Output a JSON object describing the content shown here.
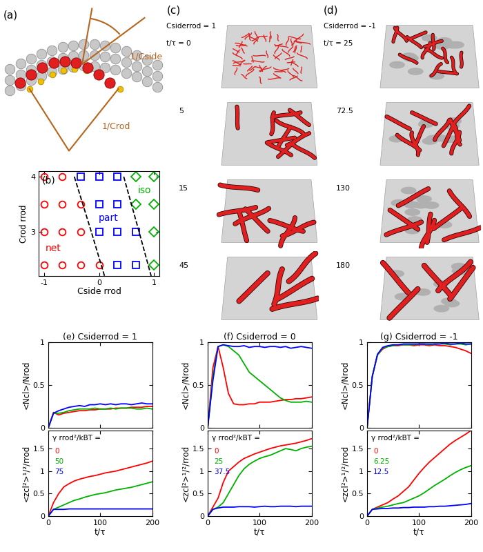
{
  "schematic": {
    "label": "(a)",
    "texts": [
      "-1/Cside",
      "1/Crod"
    ]
  },
  "snapshots": [
    {
      "label": "(c)",
      "header": "Csiderrod = 1",
      "time_prefix": "t/τ =",
      "times": [
        0,
        5,
        15,
        45
      ]
    },
    {
      "label": "(d)",
      "header": "Csiderrod = -1",
      "time_prefix": "t/τ =",
      "times": [
        25,
        72.5,
        130,
        180
      ]
    }
  ],
  "chart_data": [
    {
      "type": "scatter",
      "title": "(b)",
      "xlabel": "Cside rrod",
      "ylabel": "Crod rrod",
      "xlim": [
        -1.1,
        1.1
      ],
      "ylim": [
        2.2,
        4.1
      ],
      "xticks": [
        -1,
        0,
        1
      ],
      "yticks": [
        3,
        4
      ],
      "series": [
        {
          "color": "#ff0000",
          "marker": "circle",
          "x": [
            -1,
            -0.67,
            -1,
            -0.67,
            -0.33,
            -1,
            -0.67,
            -0.33,
            -1,
            -0.67,
            -0.33,
            0
          ],
          "y": [
            4,
            4,
            3.5,
            3.5,
            3.5,
            3,
            3,
            3,
            2.4,
            2.4,
            2.4,
            2.4
          ]
        },
        {
          "color": "#0000ff",
          "marker": "square",
          "x": [
            -0.33,
            0,
            0.33,
            0,
            0.33,
            0,
            0.33,
            0.67,
            0.33,
            0.67
          ],
          "y": [
            4,
            4,
            4,
            3.5,
            3.5,
            3,
            3,
            3,
            2.4,
            2.4
          ]
        },
        {
          "color": "#00b000",
          "marker": "diamond",
          "x": [
            0.67,
            1,
            0.67,
            1,
            1,
            1
          ],
          "y": [
            4,
            4,
            3.5,
            3.5,
            3,
            2.4
          ]
        },
        {
          "type": "line",
          "line_style": "dashed",
          "color": "#000000",
          "x": [
            -0.45,
            -0.14,
            0.1
          ],
          "y": [
            4,
            3,
            2.2
          ]
        },
        {
          "type": "line",
          "line_style": "dashed",
          "color": "#000000",
          "x": [
            0.45,
            0.73,
            0.95
          ],
          "y": [
            4,
            3,
            2.2
          ]
        }
      ],
      "annotations": [
        {
          "text": "net",
          "x": -0.83,
          "y": 2.7,
          "color": "#ff0000"
        },
        {
          "text": "part",
          "x": 0.17,
          "y": 3.25,
          "color": "#0000ff"
        },
        {
          "text": "iso",
          "x": 0.83,
          "y": 3.75,
          "color": "#00b000"
        }
      ]
    },
    {
      "type": "line",
      "title": "(e) Csiderrod = 1",
      "ylabel": "<Ncl>/Nrod",
      "xlim": [
        0,
        200
      ],
      "ylim": [
        0,
        1
      ],
      "xticks": [
        0,
        100,
        200
      ],
      "yticks": [
        0,
        0.5,
        1
      ],
      "tick_labels": "y",
      "x": [
        0,
        10,
        20,
        30,
        40,
        50,
        60,
        70,
        80,
        90,
        100,
        110,
        120,
        130,
        140,
        150,
        160,
        170,
        180,
        190,
        200
      ],
      "series": [
        {
          "color": "#ff0000",
          "values": [
            0,
            0.18,
            0.15,
            0.17,
            0.18,
            0.19,
            0.2,
            0.2,
            0.21,
            0.21,
            0.22,
            0.22,
            0.22,
            0.23,
            0.23,
            0.23,
            0.24,
            0.24,
            0.24,
            0.25,
            0.25
          ]
        },
        {
          "color": "#00b000",
          "values": [
            0,
            0.17,
            0.17,
            0.18,
            0.2,
            0.21,
            0.22,
            0.22,
            0.22,
            0.23,
            0.22,
            0.22,
            0.23,
            0.22,
            0.23,
            0.23,
            0.23,
            0.22,
            0.22,
            0.23,
            0.22
          ]
        },
        {
          "color": "#0000ff",
          "values": [
            0,
            0.17,
            0.2,
            0.22,
            0.24,
            0.25,
            0.26,
            0.25,
            0.27,
            0.27,
            0.28,
            0.27,
            0.28,
            0.27,
            0.28,
            0.28,
            0.27,
            0.28,
            0.29,
            0.28,
            0.28
          ]
        }
      ]
    },
    {
      "type": "line",
      "xlabel": "t/τ",
      "ylabel": "<zcl²>¹/²/rrod",
      "xlim": [
        0,
        200
      ],
      "ylim": [
        0,
        1.9
      ],
      "xticks": [
        0,
        100,
        200
      ],
      "yticks": [
        0,
        0.5,
        1,
        1.5
      ],
      "annotations": [
        "γ rrod²/kBT ="
      ],
      "x": [
        0,
        10,
        20,
        30,
        40,
        50,
        60,
        70,
        80,
        90,
        100,
        110,
        120,
        130,
        140,
        150,
        160,
        170,
        180,
        190,
        200
      ],
      "series": [
        {
          "name": "0",
          "color": "#ff0000",
          "values": [
            0,
            0.3,
            0.5,
            0.65,
            0.72,
            0.78,
            0.82,
            0.85,
            0.88,
            0.9,
            0.93,
            0.96,
            0.98,
            1.0,
            1.03,
            1.06,
            1.09,
            1.12,
            1.15,
            1.18,
            1.22
          ]
        },
        {
          "name": "50",
          "color": "#00b000",
          "values": [
            0,
            0.15,
            0.2,
            0.25,
            0.3,
            0.35,
            0.38,
            0.42,
            0.45,
            0.48,
            0.5,
            0.52,
            0.55,
            0.58,
            0.6,
            0.62,
            0.64,
            0.67,
            0.7,
            0.73,
            0.76
          ]
        },
        {
          "name": "75",
          "color": "#0000ff",
          "values": [
            0,
            0.15,
            0.15,
            0.15,
            0.16,
            0.16,
            0.16,
            0.16,
            0.16,
            0.16,
            0.16,
            0.16,
            0.16,
            0.16,
            0.16,
            0.16,
            0.16,
            0.16,
            0.16,
            0.16,
            0.16
          ]
        }
      ]
    },
    {
      "type": "line",
      "title": "(f) Csiderrod = 0",
      "ylabel": "<Ncl>/Nrod",
      "xlim": [
        0,
        200
      ],
      "ylim": [
        0,
        1
      ],
      "xticks": [
        0,
        100,
        200
      ],
      "yticks": [
        0,
        0.5,
        1
      ],
      "tick_labels": "y",
      "x": [
        0,
        10,
        20,
        30,
        40,
        50,
        60,
        70,
        80,
        90,
        100,
        110,
        120,
        130,
        140,
        150,
        160,
        170,
        180,
        190,
        200
      ],
      "series": [
        {
          "color": "#ff0000",
          "values": [
            0,
            0.7,
            0.95,
            0.7,
            0.4,
            0.28,
            0.27,
            0.27,
            0.28,
            0.28,
            0.3,
            0.3,
            0.3,
            0.31,
            0.32,
            0.33,
            0.33,
            0.34,
            0.34,
            0.35,
            0.36
          ]
        },
        {
          "color": "#00b000",
          "values": [
            0,
            0.6,
            0.95,
            0.97,
            0.95,
            0.9,
            0.85,
            0.75,
            0.65,
            0.6,
            0.55,
            0.5,
            0.45,
            0.4,
            0.35,
            0.32,
            0.3,
            0.3,
            0.3,
            0.31,
            0.3
          ]
        },
        {
          "color": "#0000ff",
          "values": [
            0,
            0.55,
            0.95,
            0.97,
            0.96,
            0.95,
            0.95,
            0.96,
            0.94,
            0.95,
            0.95,
            0.94,
            0.95,
            0.95,
            0.94,
            0.95,
            0.93,
            0.94,
            0.95,
            0.94,
            0.93
          ]
        }
      ]
    },
    {
      "type": "line",
      "xlabel": "t/τ",
      "ylabel": "<zcl²>¹/²/rrod",
      "xlim": [
        0,
        200
      ],
      "ylim": [
        0,
        1.9
      ],
      "xticks": [
        0,
        100,
        200
      ],
      "yticks": [
        0,
        0.5,
        1,
        1.5
      ],
      "annotations": [
        "γ rrod²/kBT ="
      ],
      "x": [
        0,
        10,
        20,
        30,
        40,
        50,
        60,
        70,
        80,
        90,
        100,
        110,
        120,
        130,
        140,
        150,
        160,
        170,
        180,
        190,
        200
      ],
      "series": [
        {
          "name": "0",
          "color": "#ff0000",
          "values": [
            0,
            0.2,
            0.4,
            0.75,
            1.0,
            1.1,
            1.2,
            1.28,
            1.33,
            1.38,
            1.42,
            1.46,
            1.5,
            1.53,
            1.56,
            1.58,
            1.6,
            1.62,
            1.65,
            1.68,
            1.72
          ]
        },
        {
          "name": "25",
          "color": "#00b000",
          "values": [
            0,
            0.15,
            0.2,
            0.3,
            0.5,
            0.7,
            0.9,
            1.05,
            1.15,
            1.22,
            1.28,
            1.32,
            1.35,
            1.4,
            1.45,
            1.5,
            1.48,
            1.45,
            1.5,
            1.53,
            1.55
          ]
        },
        {
          "name": "37.5",
          "color": "#0000ff",
          "values": [
            0,
            0.15,
            0.18,
            0.2,
            0.2,
            0.2,
            0.21,
            0.21,
            0.21,
            0.2,
            0.21,
            0.22,
            0.21,
            0.21,
            0.22,
            0.22,
            0.22,
            0.21,
            0.22,
            0.22,
            0.22
          ]
        }
      ]
    },
    {
      "type": "line",
      "title": "(g) Csiderrod = -1",
      "ylabel": "<Ncl>/Nrod",
      "xlim": [
        0,
        200
      ],
      "ylim": [
        0,
        1
      ],
      "xticks": [
        0,
        100,
        200
      ],
      "yticks": [
        0,
        0.5,
        1
      ],
      "tick_labels": "y",
      "x": [
        0,
        10,
        20,
        30,
        40,
        50,
        60,
        70,
        80,
        90,
        100,
        110,
        120,
        130,
        140,
        150,
        160,
        170,
        180,
        190,
        200
      ],
      "series": [
        {
          "color": "#ff0000",
          "values": [
            0,
            0.6,
            0.85,
            0.92,
            0.95,
            0.96,
            0.96,
            0.97,
            0.97,
            0.96,
            0.97,
            0.97,
            0.96,
            0.97,
            0.96,
            0.96,
            0.95,
            0.94,
            0.92,
            0.9,
            0.87
          ]
        },
        {
          "color": "#00b000",
          "values": [
            0,
            0.6,
            0.85,
            0.93,
            0.95,
            0.96,
            0.97,
            0.97,
            0.97,
            0.97,
            0.98,
            0.98,
            0.97,
            0.98,
            0.98,
            0.98,
            0.97,
            0.98,
            0.98,
            0.97,
            0.98
          ]
        },
        {
          "color": "#0000ff",
          "values": [
            0,
            0.6,
            0.86,
            0.94,
            0.96,
            0.97,
            0.97,
            0.98,
            0.98,
            0.98,
            0.98,
            0.98,
            0.98,
            0.98,
            0.98,
            0.99,
            0.98,
            0.98,
            0.99,
            0.98,
            0.98
          ]
        }
      ]
    },
    {
      "type": "line",
      "xlabel": "t/τ",
      "ylabel": "<zcl²>¹/²/rrod",
      "xlim": [
        0,
        200
      ],
      "ylim": [
        0,
        1.9
      ],
      "xticks": [
        0,
        100,
        200
      ],
      "yticks": [
        0,
        0.5,
        1,
        1.5
      ],
      "annotations": [
        "γ rrod²/kBT ="
      ],
      "x": [
        0,
        10,
        20,
        30,
        40,
        50,
        60,
        70,
        80,
        90,
        100,
        110,
        120,
        130,
        140,
        150,
        160,
        170,
        180,
        190,
        200
      ],
      "series": [
        {
          "name": "0",
          "color": "#ff0000",
          "values": [
            0,
            0.15,
            0.2,
            0.25,
            0.3,
            0.38,
            0.45,
            0.55,
            0.65,
            0.8,
            0.95,
            1.08,
            1.2,
            1.3,
            1.4,
            1.5,
            1.6,
            1.68,
            1.75,
            1.82,
            1.9
          ]
        },
        {
          "name": "6.25",
          "color": "#00b000",
          "values": [
            0,
            0.15,
            0.18,
            0.2,
            0.22,
            0.25,
            0.28,
            0.3,
            0.35,
            0.4,
            0.45,
            0.52,
            0.6,
            0.68,
            0.75,
            0.82,
            0.9,
            0.97,
            1.03,
            1.08,
            1.12
          ]
        },
        {
          "name": "12.5",
          "color": "#0000ff",
          "values": [
            0,
            0.15,
            0.16,
            0.17,
            0.17,
            0.18,
            0.18,
            0.19,
            0.19,
            0.2,
            0.2,
            0.2,
            0.21,
            0.21,
            0.22,
            0.22,
            0.23,
            0.24,
            0.25,
            0.26,
            0.28
          ]
        }
      ]
    }
  ]
}
